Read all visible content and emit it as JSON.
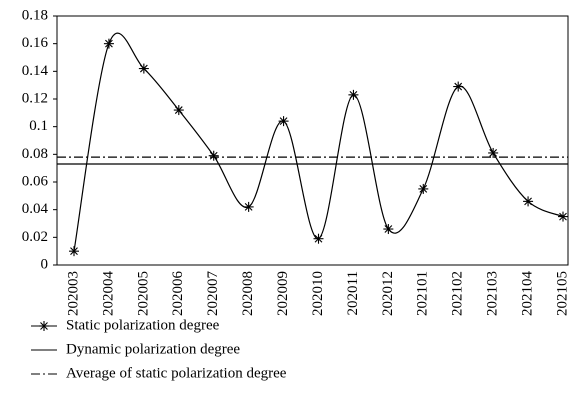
{
  "chart_data": {
    "type": "line",
    "categories": [
      "202003",
      "202004",
      "202005",
      "202006",
      "202007",
      "202008",
      "202009",
      "202010",
      "202011",
      "202012",
      "202101",
      "202102",
      "202103",
      "202104",
      "202105"
    ],
    "series": [
      {
        "name": "Static polarization degree",
        "color": "#000000",
        "values": [
          0.01,
          0.16,
          0.142,
          0.112,
          0.079,
          0.042,
          0.104,
          0.019,
          0.123,
          0.026,
          0.055,
          0.129,
          0.081,
          0.046,
          0.035
        ]
      }
    ],
    "reference_lines": [
      {
        "name": "Dynamic polarization degree",
        "value": 0.073,
        "color": "#000000",
        "dash": "solid"
      },
      {
        "name": "Average of static polarization degree",
        "value": 0.078,
        "color": "#000000",
        "dash": "dashdot"
      }
    ],
    "ylim": [
      0,
      0.18
    ],
    "yticks": [
      0,
      0.02,
      0.04,
      0.06,
      0.08,
      0.1,
      0.12,
      0.14,
      0.16,
      0.18
    ],
    "grid": false
  }
}
